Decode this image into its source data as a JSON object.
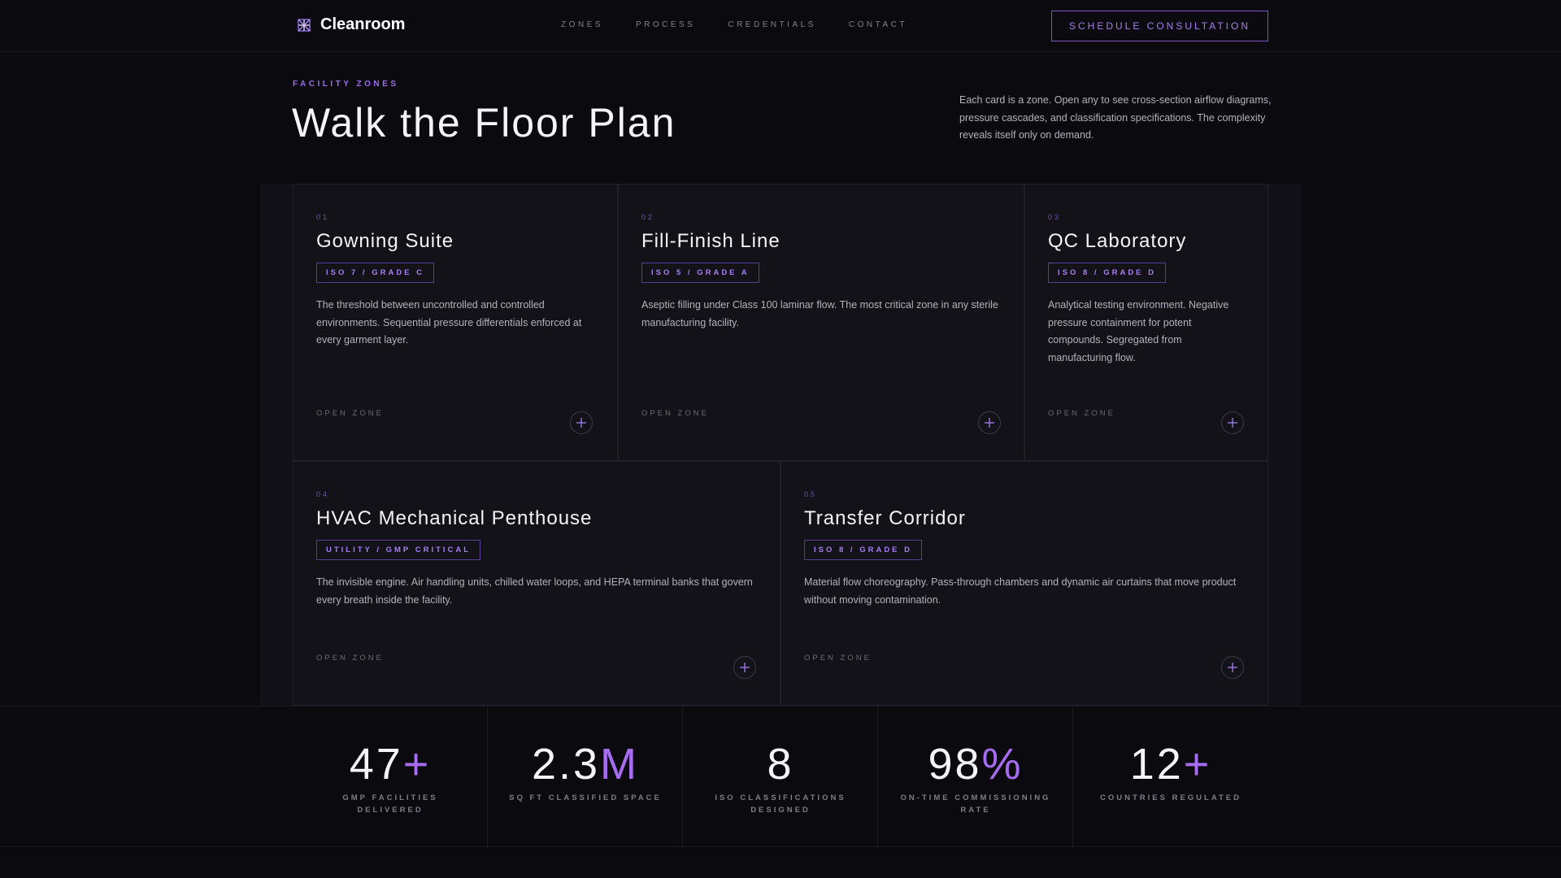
{
  "header": {
    "brand": "Cleanroom",
    "logo_icon": "grid-snowflake-icon",
    "nav": [
      "ZONES",
      "PROCESS",
      "CREDENTIALS",
      "CONTACT"
    ],
    "cta_label": "SCHEDULE CONSULTATION"
  },
  "hero": {
    "eyebrow": "FACILITY ZONES",
    "title": "Walk the Floor Plan",
    "intro": "Each card is a zone. Open any to see cross-section airflow diagrams, pressure cascades, and classification specifications. The complexity reveals itself only on demand."
  },
  "zones": [
    {
      "num": "01",
      "title": "Gowning Suite",
      "badge": "ISO 7 / GRADE C",
      "desc": "The threshold between uncontrolled and controlled environments. Sequential pressure differentials enforced at every garment layer.",
      "open_label": "OPEN ZONE"
    },
    {
      "num": "02",
      "title": "Fill-Finish Line",
      "badge": "ISO 5 / GRADE A",
      "desc": "Aseptic filling under Class 100 laminar flow. The most critical zone in any sterile manufacturing facility.",
      "open_label": "OPEN ZONE"
    },
    {
      "num": "03",
      "title": "QC Laboratory",
      "badge": "ISO 8 / GRADE D",
      "desc": "Analytical testing environment. Negative pressure containment for potent compounds. Segregated from manufacturing flow.",
      "open_label": "OPEN ZONE"
    },
    {
      "num": "04",
      "title": "HVAC Mechanical Penthouse",
      "badge": "UTILITY / GMP CRITICAL",
      "desc": "The invisible engine. Air handling units, chilled water loops, and HEPA terminal banks that govern every breath inside the facility.",
      "open_label": "OPEN ZONE"
    },
    {
      "num": "05",
      "title": "Transfer Corridor",
      "badge": "ISO 8 / GRADE D",
      "desc": "Material flow choreography. Pass-through chambers and dynamic air curtains that move product without moving contamination.",
      "open_label": "OPEN ZONE"
    }
  ],
  "stats": [
    {
      "value": "47",
      "suffix": "+",
      "label": "GMP FACILITIES DELIVERED"
    },
    {
      "value": "2.3",
      "suffix": "M",
      "label": "SQ FT CLASSIFIED SPACE"
    },
    {
      "value": "8",
      "suffix": "",
      "label": "ISO CLASSIFICATIONS DESIGNED"
    },
    {
      "value": "98",
      "suffix": "%",
      "label": "ON-TIME COMMISSIONING RATE"
    },
    {
      "value": "12",
      "suffix": "+",
      "label": "COUNTRIES REGULATED"
    }
  ],
  "colors": {
    "background": "#0b0b0f",
    "card": "#121218",
    "accent": "#a77ef2",
    "text": "#f4f4f7",
    "muted": "#b2b2bc"
  }
}
